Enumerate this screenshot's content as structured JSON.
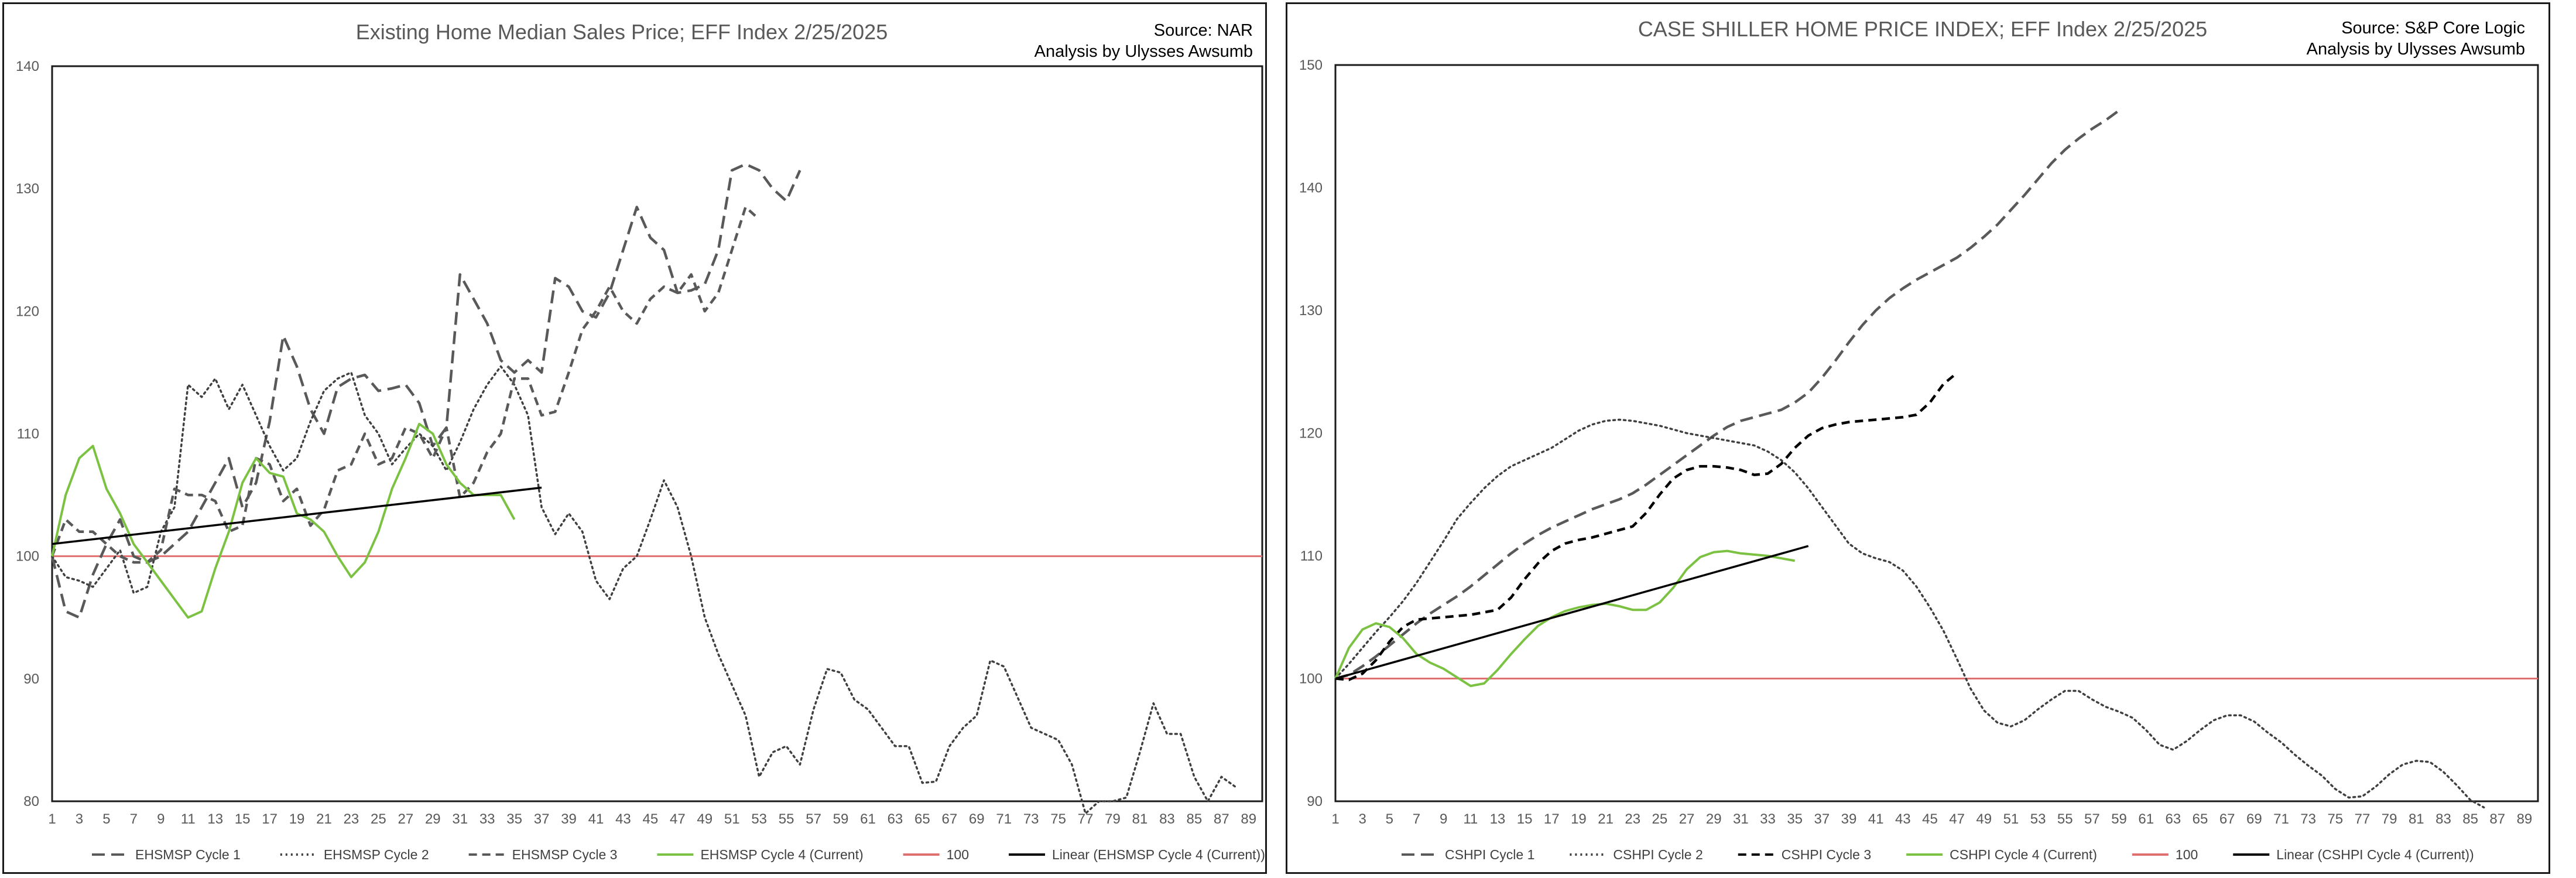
{
  "colors": {
    "cycle1": "#595959",
    "cycle2": "#404040",
    "cycle3_left": "#595959",
    "cycle3_right": "#000000",
    "cycle4": "#7cc242",
    "baseline": "#e07070",
    "trend": "#000000"
  },
  "chart_data": [
    {
      "type": "line",
      "title": "Existing Home Median Sales Price; EFF Index 2/25/2025",
      "source_line1": "Source: NAR",
      "source_line2": "Analysis by Ulysses Awsumb",
      "ylim": [
        80,
        140
      ],
      "yticks": [
        80,
        90,
        100,
        110,
        120,
        130,
        140
      ],
      "xlim": [
        1,
        90
      ],
      "xticks": [
        1,
        3,
        5,
        7,
        9,
        11,
        13,
        15,
        17,
        19,
        21,
        23,
        25,
        27,
        29,
        31,
        33,
        35,
        37,
        39,
        41,
        43,
        45,
        47,
        49,
        51,
        53,
        55,
        57,
        59,
        61,
        63,
        65,
        67,
        69,
        71,
        73,
        75,
        77,
        79,
        81,
        83,
        85,
        87,
        89
      ],
      "grid": false,
      "legend_position": "bottom",
      "baseline": 100,
      "trendline": {
        "x": [
          1,
          37
        ],
        "y": [
          101.0,
          105.6
        ]
      },
      "series": [
        {
          "name": "EHSMSP Cycle 1",
          "dash": "longdash",
          "color_key": "cycle1",
          "values": [
            100,
            95.5,
            95,
            98.5,
            101,
            103,
            100,
            99.5,
            100,
            101,
            102,
            104,
            106,
            108,
            104,
            106,
            111,
            118,
            115.5,
            112,
            110,
            113.8,
            114.5,
            114.8,
            113.5,
            113.7,
            114,
            112.5,
            109,
            110.5,
            123,
            121,
            119,
            116,
            115,
            116,
            115,
            122.7,
            122,
            120,
            119.5,
            121.5,
            125,
            128.5,
            126,
            125,
            121.5,
            121.7,
            122.2,
            125,
            131.5,
            132,
            131.5,
            130,
            129,
            131.5
          ]
        },
        {
          "name": "EHSMSP Cycle 2",
          "dash": "dotted",
          "color_key": "cycle2",
          "values": [
            100,
            98.3,
            98,
            97.5,
            99,
            100.5,
            97,
            97.5,
            102,
            104,
            114,
            113,
            114.5,
            112,
            114,
            111.5,
            109,
            107,
            108,
            111,
            113.5,
            114.5,
            115,
            111.5,
            110,
            107.5,
            108.8,
            110,
            109,
            107,
            109.3,
            112,
            114,
            115.5,
            114,
            111.5,
            104,
            101.8,
            103.5,
            102,
            98,
            96.5,
            99,
            100,
            103,
            106.2,
            104,
            100,
            95,
            92,
            89.5,
            87,
            82,
            84,
            84.5,
            83,
            87.5,
            90.8,
            90.5,
            88.3,
            87.5,
            86,
            84.5,
            84.5,
            81.5,
            81.6,
            84.5,
            86,
            87,
            91.5,
            91,
            88.5,
            86,
            85.5,
            85,
            83,
            79,
            80,
            80,
            80.3,
            84,
            88,
            85.5,
            85.5,
            82,
            80,
            82,
            81.2
          ]
        },
        {
          "name": "EHSMSP Cycle 3",
          "dash": "dashed",
          "color_key": "cycle3_left",
          "values": [
            100,
            103,
            102,
            102,
            101,
            100,
            99.5,
            99.5,
            100.5,
            105.5,
            105,
            105,
            104.5,
            102,
            102.5,
            108,
            107.5,
            104.5,
            105.5,
            102.5,
            103.8,
            107,
            107.5,
            110,
            107.5,
            108,
            110.5,
            110,
            108,
            110.5,
            104.8,
            106,
            108.5,
            110,
            114.5,
            114.5,
            111.5,
            111.8,
            115,
            118.5,
            120,
            122,
            120,
            119,
            121,
            122,
            121.5,
            123,
            120,
            121.5,
            125,
            128.5,
            127.5
          ]
        },
        {
          "name": "EHSMSP Cycle 4 (Current)",
          "dash": "solid",
          "color_key": "cycle4",
          "values": [
            100,
            105,
            108,
            109,
            105.5,
            103.5,
            101,
            99.5,
            98,
            96.5,
            95,
            95.5,
            99,
            102,
            106,
            108,
            106.8,
            106.5,
            103.5,
            103,
            102,
            100,
            98.3,
            99.5,
            102,
            105.5,
            108,
            110.8,
            110,
            107.5,
            106,
            105,
            105,
            105,
            103
          ]
        },
        {
          "name": "100",
          "kind": "baseline",
          "color_key": "baseline"
        },
        {
          "name": "Linear (EHSMSP Cycle 4 (Current))",
          "kind": "trend",
          "color_key": "trend"
        }
      ]
    },
    {
      "type": "line",
      "title": "CASE SHILLER HOME PRICE INDEX; EFF Index 2/25/2025",
      "source_line1": "Source: S&P Core Logic",
      "source_line2": "Analysis by Ulysses Awsumb",
      "ylim": [
        90,
        150
      ],
      "yticks": [
        90,
        100,
        110,
        120,
        130,
        140,
        150
      ],
      "xlim": [
        1,
        90
      ],
      "xticks": [
        1,
        3,
        5,
        7,
        9,
        11,
        13,
        15,
        17,
        19,
        21,
        23,
        25,
        27,
        29,
        31,
        33,
        35,
        37,
        39,
        41,
        43,
        45,
        47,
        49,
        51,
        53,
        55,
        57,
        59,
        61,
        63,
        65,
        67,
        69,
        71,
        73,
        75,
        77,
        79,
        81,
        83,
        85,
        87,
        89
      ],
      "grid": false,
      "legend_position": "bottom",
      "baseline": 100,
      "trendline": {
        "x": [
          1,
          36
        ],
        "y": [
          100.0,
          110.8
        ]
      },
      "series": [
        {
          "name": "CSHPI Cycle 1",
          "dash": "longdash",
          "color_key": "cycle1",
          "values": [
            100,
            100.3,
            101,
            101.8,
            102.7,
            103.6,
            104.5,
            105.3,
            106,
            106.7,
            107.5,
            108.4,
            109.3,
            110.2,
            111,
            111.7,
            112.3,
            112.8,
            113.3,
            113.8,
            114.2,
            114.6,
            115.1,
            115.8,
            116.6,
            117.4,
            118.2,
            119,
            119.8,
            120.5,
            121,
            121.3,
            121.6,
            121.9,
            122.5,
            123.3,
            124.5,
            125.9,
            127.4,
            128.8,
            130,
            131,
            131.8,
            132.5,
            133.1,
            133.7,
            134.3,
            135.1,
            136,
            137,
            138.2,
            139.4,
            140.7,
            142,
            143.1,
            144,
            144.8,
            145.5,
            146.3
          ]
        },
        {
          "name": "CSHPI Cycle 2",
          "dash": "dotted",
          "color_key": "cycle2",
          "values": [
            100,
            101.2,
            102.5,
            103.8,
            105,
            106.3,
            107.8,
            109.5,
            111.2,
            113,
            114.3,
            115.5,
            116.5,
            117.3,
            117.8,
            118.3,
            118.8,
            119.5,
            120.2,
            120.7,
            121,
            121.1,
            121,
            120.8,
            120.6,
            120.3,
            120,
            119.8,
            119.6,
            119.4,
            119.2,
            119,
            118.5,
            117.8,
            116.8,
            115.5,
            114,
            112.5,
            111,
            110.2,
            109.8,
            109.5,
            108.8,
            107.5,
            105.8,
            103.9,
            101.6,
            99.2,
            97.4,
            96.4,
            96.1,
            96.6,
            97.5,
            98.3,
            99,
            99,
            98.3,
            97.7,
            97.3,
            96.8,
            95.8,
            94.6,
            94.2,
            94.9,
            95.8,
            96.6,
            97,
            97,
            96.5,
            95.6,
            94.8,
            93.8,
            92.9,
            92.1,
            91,
            90.3,
            90.4,
            91.2,
            92.2,
            93,
            93.3,
            93.2,
            92.4,
            91.3,
            90.1,
            89.5
          ]
        },
        {
          "name": "CSHPI Cycle 3",
          "dash": "dashed",
          "color_key": "cycle3_right",
          "values": [
            100,
            99.9,
            100.4,
            101.5,
            103,
            104.2,
            104.8,
            104.9,
            105,
            105.1,
            105.2,
            105.4,
            105.6,
            106.6,
            108.1,
            109.4,
            110.4,
            111,
            111.3,
            111.5,
            111.8,
            112.1,
            112.4,
            113.5,
            115,
            116.3,
            117,
            117.3,
            117.3,
            117.2,
            117,
            116.6,
            116.7,
            117.5,
            118.8,
            119.8,
            120.4,
            120.7,
            120.9,
            121,
            121.1,
            121.2,
            121.3,
            121.5,
            122.5,
            124,
            124.9
          ]
        },
        {
          "name": "CSHPI Cycle 4 (Current)",
          "dash": "solid",
          "color_key": "cycle4",
          "values": [
            100,
            102.5,
            104,
            104.5,
            104.2,
            103.3,
            102,
            101.3,
            100.8,
            100.1,
            99.4,
            99.6,
            100.7,
            102,
            103.2,
            104.3,
            105,
            105.5,
            105.8,
            106,
            106.1,
            105.9,
            105.6,
            105.6,
            106.2,
            107.4,
            108.9,
            109.9,
            110.3,
            110.4,
            110.2,
            110.1,
            110,
            109.8,
            109.6
          ]
        },
        {
          "name": "100",
          "kind": "baseline",
          "color_key": "baseline"
        },
        {
          "name": "Linear (CSHPI Cycle 4 (Current))",
          "kind": "trend",
          "color_key": "trend"
        }
      ]
    }
  ]
}
